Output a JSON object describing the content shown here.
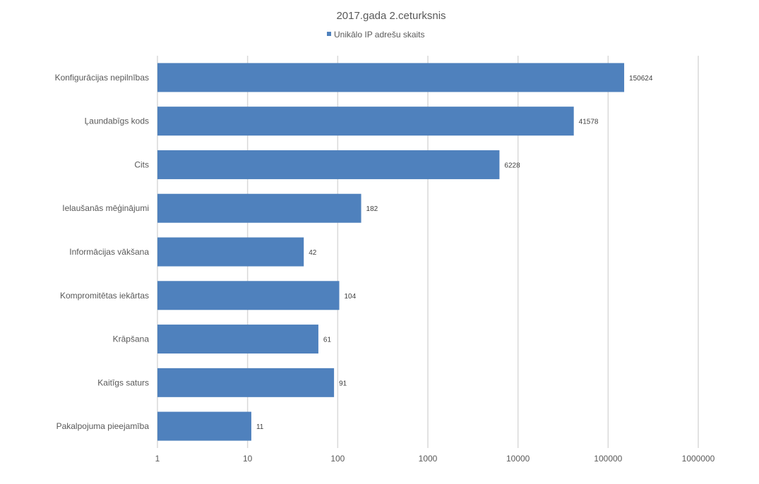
{
  "chart_data": {
    "type": "bar",
    "orientation": "horizontal",
    "title": "2017.gada 2.ceturksnis",
    "legend": {
      "position": "top-center",
      "entries": [
        "Unikālo IP adrešu skaits"
      ]
    },
    "categories": [
      "Konfigurācijas nepilnības",
      "Ļaundabīgs kods",
      "Cits",
      "Ielaušanās mēģinājumi",
      "Informācijas vākšana",
      "Kompromitētas iekārtas",
      "Krāpšana",
      "Kaitīgs saturs",
      "Pakalpojuma pieejamība"
    ],
    "series": [
      {
        "name": "Unikālo IP adrešu skaits",
        "values": [
          150624,
          41578,
          6228,
          182,
          42,
          104,
          61,
          91,
          11
        ],
        "color": "#4f81bd"
      }
    ],
    "data_labels": [
      "150624",
      "41578",
      "6228",
      "182",
      "42",
      "104",
      "61",
      "91",
      "11"
    ],
    "x_axis": {
      "scale": "log",
      "range": [
        1,
        1000000
      ],
      "ticks": [
        1,
        10,
        100,
        1000,
        10000,
        100000,
        1000000
      ],
      "tick_labels": [
        "1",
        "10",
        "100",
        "1000",
        "10000",
        "100000",
        "1000000"
      ]
    },
    "xlabel": "",
    "ylabel": "",
    "grid": true,
    "colors": {
      "bar": "#4f81bd",
      "grid": "#d9d9d9",
      "text": "#595959",
      "label": "#404040"
    }
  }
}
